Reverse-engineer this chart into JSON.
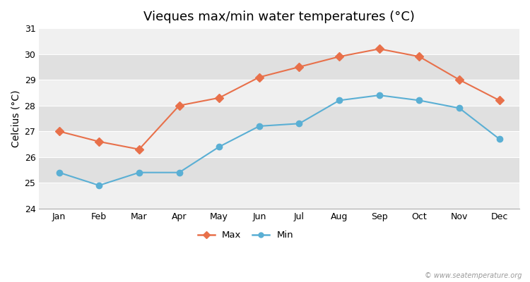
{
  "title": "Vieques max/min water temperatures (°C)",
  "xlabel": "",
  "ylabel": "Celcius (°C)",
  "months": [
    "Jan",
    "Feb",
    "Mar",
    "Apr",
    "May",
    "Jun",
    "Jul",
    "Aug",
    "Sep",
    "Oct",
    "Nov",
    "Dec"
  ],
  "max_temps": [
    27.0,
    26.6,
    26.3,
    28.0,
    28.3,
    29.1,
    29.5,
    29.9,
    30.2,
    29.9,
    29.0,
    28.2
  ],
  "min_temps": [
    25.4,
    24.9,
    25.4,
    25.4,
    26.4,
    27.2,
    27.3,
    28.2,
    28.4,
    28.2,
    27.9,
    26.7
  ],
  "max_color": "#e8704a",
  "min_color": "#5aafd4",
  "bg_color": "#ffffff",
  "band_light": "#f0f0f0",
  "band_dark": "#e0e0e0",
  "ylim": [
    24,
    31
  ],
  "yticks": [
    24,
    25,
    26,
    27,
    28,
    29,
    30,
    31
  ],
  "legend_labels": [
    "Max",
    "Min"
  ],
  "watermark": "© www.seatemperature.org",
  "title_fontsize": 13,
  "axis_label_fontsize": 10,
  "tick_fontsize": 9
}
